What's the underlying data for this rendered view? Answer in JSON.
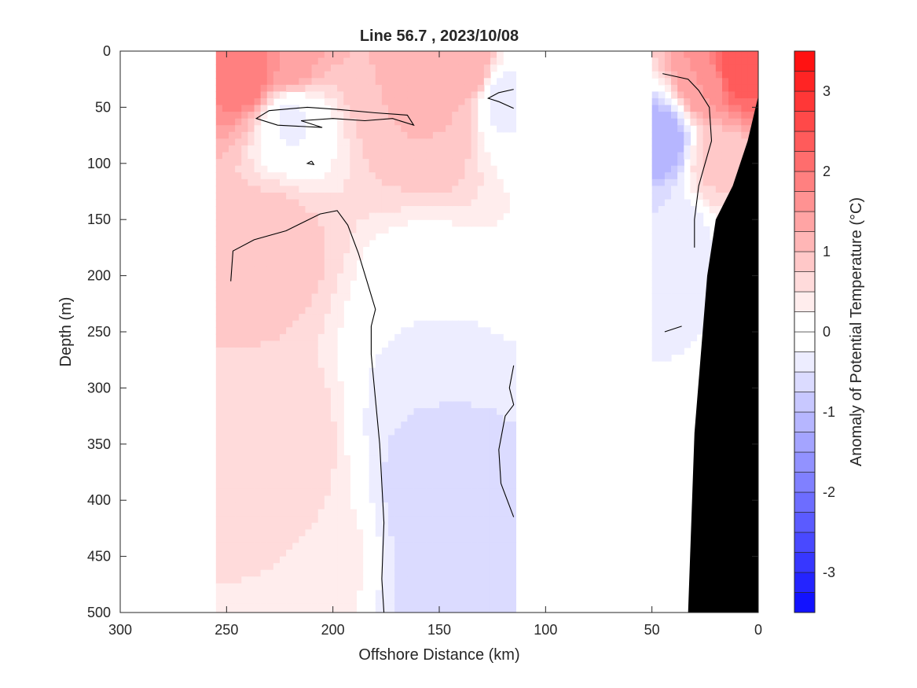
{
  "chart_data": {
    "type": "heatmap",
    "title": "Line 56.7 , 2023/10/08",
    "xlabel": "Offshore Distance (km)",
    "ylabel": "Depth (m)",
    "colorbar_label": "Anomaly of Potential Temperature (°C)",
    "xlim": [
      300,
      0
    ],
    "ylim": [
      0,
      500
    ],
    "x_reversed": true,
    "y_reversed": true,
    "x_ticks": [
      300,
      250,
      200,
      150,
      100,
      50,
      0
    ],
    "y_ticks": [
      0,
      50,
      100,
      150,
      200,
      250,
      300,
      350,
      400,
      450,
      500
    ],
    "colorbar": {
      "range": [
        -3.5,
        3.5
      ],
      "step": 0.25,
      "ticks": [
        3,
        2,
        1,
        0,
        -1,
        -2,
        -3
      ],
      "cold_color": "#0000ff",
      "warm_color": "#ff0000",
      "zero_color": "#ffffff"
    },
    "colormap": "blue-white-red diverging",
    "data_coverage": [
      {
        "x_range": [
          255,
          115
        ],
        "note": "offshore stations with data"
      },
      {
        "x_range": [
          50,
          0
        ],
        "note": "nearshore stations with data"
      }
    ],
    "anomaly_regions": [
      {
        "x": 240,
        "y": 18,
        "value": 2.0
      },
      {
        "x": 222,
        "y": 12,
        "value": 1.5
      },
      {
        "x": 175,
        "y": 12,
        "value": 1.0
      },
      {
        "x": 150,
        "y": 20,
        "value": 1.2
      },
      {
        "x": 135,
        "y": 15,
        "value": 1.2
      },
      {
        "x": 150,
        "y": 55,
        "value": 1.0
      },
      {
        "x": 220,
        "y": 60,
        "value": -0.3
      },
      {
        "x": 120,
        "y": 40,
        "value": -0.4
      },
      {
        "x": 230,
        "y": 170,
        "value": 0.9
      },
      {
        "x": 225,
        "y": 350,
        "value": 0.75
      },
      {
        "x": 210,
        "y": 450,
        "value": 0.5
      },
      {
        "x": 155,
        "y": 230,
        "value": -0.25
      },
      {
        "x": 155,
        "y": 330,
        "value": -0.5
      },
      {
        "x": 150,
        "y": 390,
        "value": -0.75
      },
      {
        "x": 150,
        "y": 470,
        "value": -0.6
      },
      {
        "x": 10,
        "y": 15,
        "value": 2.5
      },
      {
        "x": 25,
        "y": 30,
        "value": 1.5
      },
      {
        "x": 20,
        "y": 100,
        "value": 0.8
      },
      {
        "x": 45,
        "y": 80,
        "value": -1.25
      },
      {
        "x": 40,
        "y": 160,
        "value": -0.5
      },
      {
        "x": 42,
        "y": 220,
        "value": -0.25
      }
    ],
    "zero_contours": [
      [
        [
          215,
          62
        ],
        [
          200,
          60
        ],
        [
          185,
          62
        ],
        [
          172,
          60
        ],
        [
          162,
          66
        ],
        [
          165,
          57
        ],
        [
          180,
          55
        ],
        [
          197,
          52
        ],
        [
          212,
          50
        ],
        [
          230,
          53
        ],
        [
          236,
          60
        ],
        [
          226,
          66
        ],
        [
          205,
          68
        ],
        [
          215,
          62
        ]
      ],
      [
        [
          210,
          98
        ],
        [
          212,
          100
        ],
        [
          209,
          101
        ],
        [
          210,
          98
        ]
      ],
      [
        [
          115,
          51
        ],
        [
          122,
          45
        ],
        [
          127,
          42
        ],
        [
          122,
          37
        ],
        [
          115,
          34
        ]
      ],
      [
        [
          176,
          500
        ],
        [
          177,
          470
        ],
        [
          176,
          420
        ],
        [
          178,
          350
        ],
        [
          180,
          310
        ],
        [
          182,
          270
        ],
        [
          182,
          245
        ],
        [
          180,
          230
        ],
        [
          184,
          205
        ],
        [
          188,
          180
        ],
        [
          193,
          155
        ],
        [
          198,
          142
        ],
        [
          206,
          145
        ],
        [
          222,
          160
        ],
        [
          237,
          168
        ],
        [
          247,
          178
        ],
        [
          248,
          205
        ]
      ],
      [
        [
          115,
          415
        ],
        [
          118,
          400
        ],
        [
          121,
          385
        ],
        [
          122,
          355
        ],
        [
          119,
          325
        ],
        [
          115,
          315
        ],
        [
          117,
          300
        ],
        [
          115,
          280
        ]
      ],
      [
        [
          30,
          175
        ],
        [
          30,
          150
        ],
        [
          28,
          120
        ],
        [
          25,
          100
        ],
        [
          22,
          80
        ],
        [
          23,
          50
        ],
        [
          28,
          35
        ],
        [
          33,
          25
        ],
        [
          45,
          20
        ]
      ],
      [
        [
          44,
          250
        ],
        [
          36,
          245
        ]
      ]
    ],
    "bathymetry": [
      [
        0,
        34
      ],
      [
        0,
        40
      ],
      [
        5,
        80
      ],
      [
        12,
        120
      ],
      [
        20,
        150
      ],
      [
        24,
        200
      ],
      [
        30,
        340
      ],
      [
        33,
        500
      ]
    ]
  }
}
